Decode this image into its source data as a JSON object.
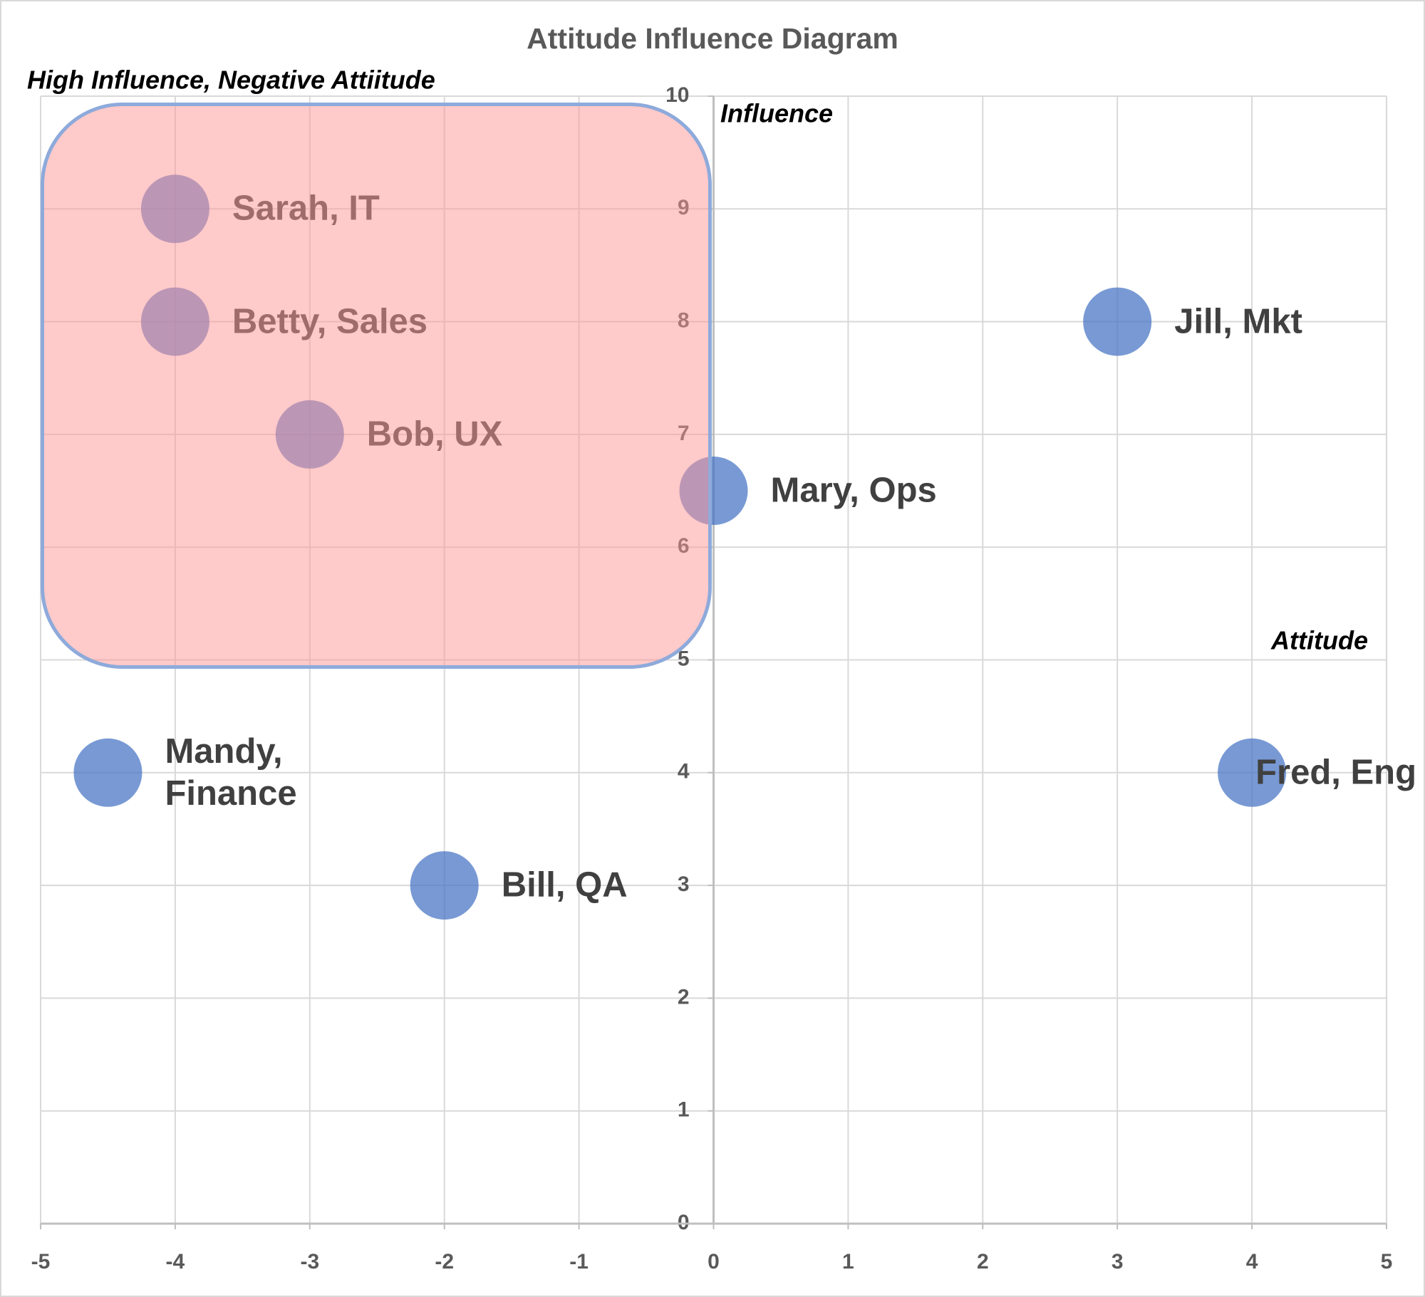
{
  "chart_data": {
    "type": "scatter",
    "title": "Attitude Influence Diagram",
    "annotations": [
      "High Influence, Negative Attiitude",
      "Influence",
      "Attitude"
    ],
    "labels": [
      "Sarah, IT",
      "Betty, Sales",
      "Bob, UX",
      "Mary, Ops",
      "Jill, Mkt",
      "Mandy, Finance",
      "Bill, QA",
      "Fred, Eng"
    ],
    "x": [
      -4,
      -4,
      -3,
      0,
      3,
      -4.5,
      -2,
      4
    ],
    "values": [
      9,
      8,
      7,
      6.5,
      8,
      4,
      3,
      4
    ],
    "color": "rgba(68, 114, 196, 0.72)",
    "xlim": [
      -5,
      5
    ],
    "xticks": [
      -5,
      -4,
      -3,
      -2,
      -1,
      0,
      1,
      2,
      3,
      4,
      5
    ],
    "ylim": [
      0,
      10
    ],
    "yticks": [
      0,
      1,
      2,
      3,
      4,
      5,
      6,
      7,
      8,
      9,
      10
    ],
    "grid": true
  }
}
